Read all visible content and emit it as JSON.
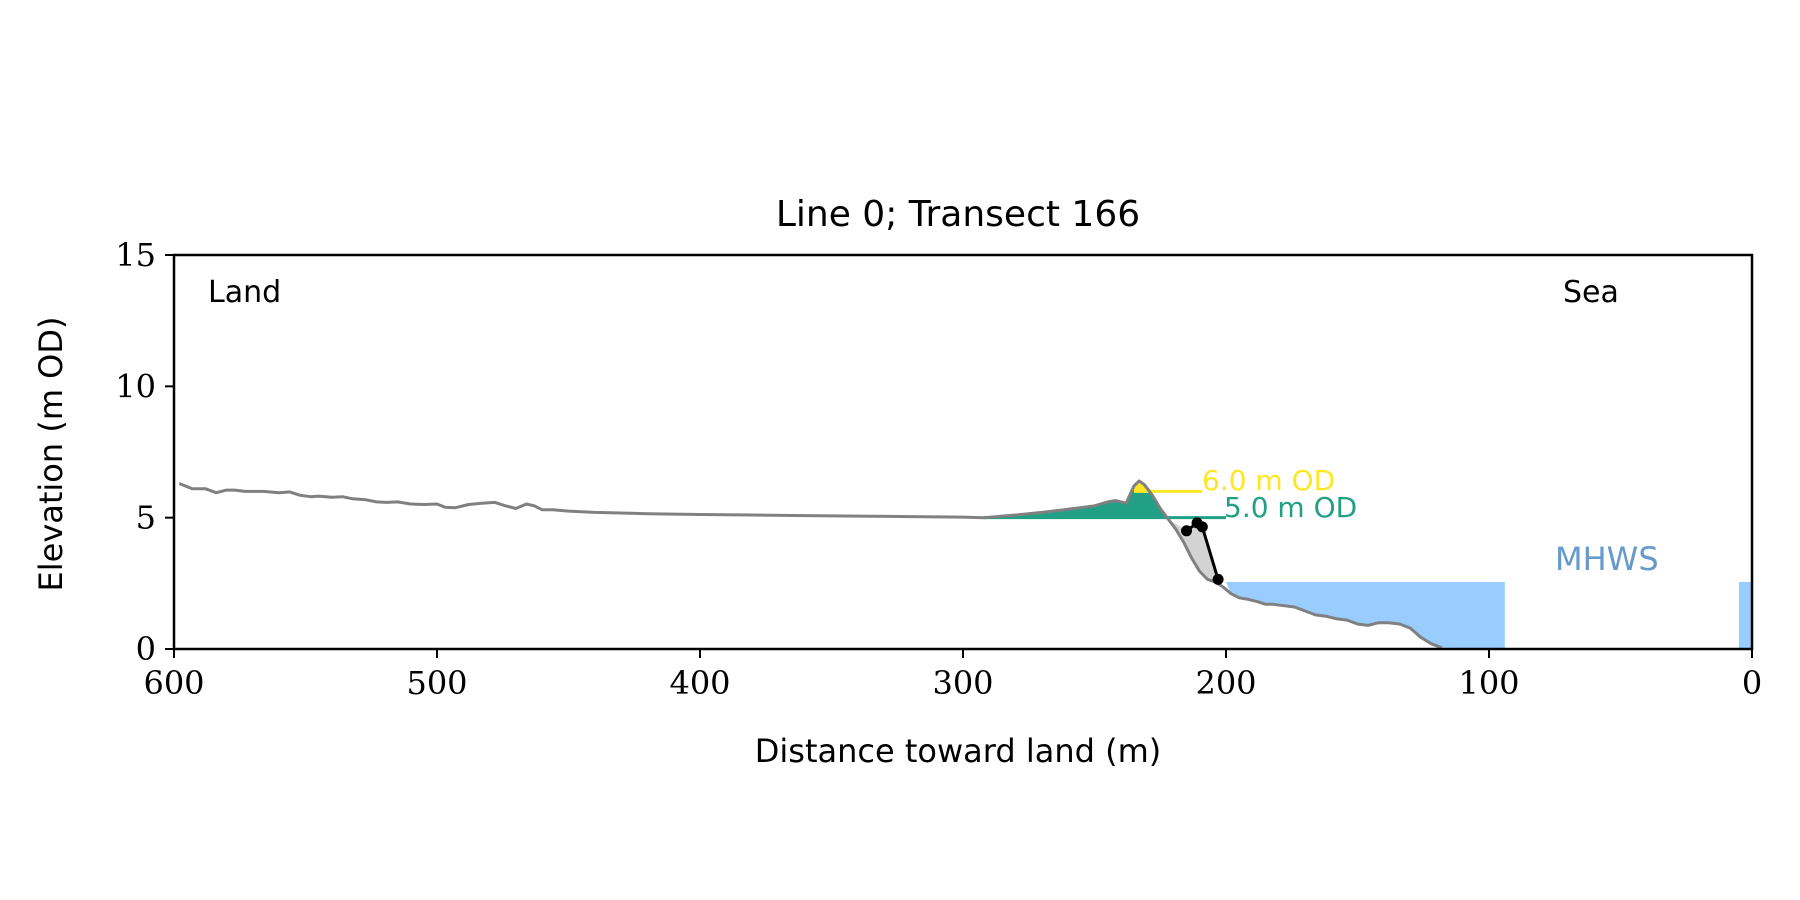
{
  "chart_data": {
    "type": "line",
    "title": "Line 0; Transect 166",
    "xlabel": "Distance toward land (m)",
    "ylabel": "Elevation (m OD)",
    "xlim": [
      600,
      0
    ],
    "ylim": [
      0,
      15
    ],
    "x_ticks": [
      600,
      500,
      400,
      300,
      200,
      100,
      0
    ],
    "y_ticks": [
      0,
      5,
      10,
      15
    ],
    "grid": false,
    "corner_labels": {
      "left": "Land",
      "right": "Sea"
    },
    "profile": {
      "color": "#808080",
      "x": [
        598,
        593,
        588,
        584,
        580,
        577,
        573,
        566,
        560,
        556,
        552,
        548,
        545,
        540,
        536,
        532,
        527,
        523,
        519,
        515,
        510,
        505,
        500,
        497,
        493,
        488,
        483,
        478,
        474,
        470,
        466,
        463,
        460,
        456,
        450,
        440,
        420,
        400,
        380,
        360,
        340,
        320,
        300,
        292,
        280,
        270,
        260,
        250,
        245,
        242,
        238,
        235,
        233,
        231,
        228,
        225,
        222,
        219,
        216,
        213,
        210,
        207,
        204,
        201,
        198,
        195,
        192,
        188,
        185,
        182,
        178,
        174,
        170,
        166,
        162,
        158,
        154,
        150,
        146,
        142,
        138,
        134,
        130,
        126,
        122,
        118
      ],
      "y": [
        6.3,
        6.1,
        6.1,
        5.95,
        6.05,
        6.05,
        6.0,
        6.0,
        5.95,
        5.98,
        5.85,
        5.8,
        5.82,
        5.78,
        5.8,
        5.72,
        5.68,
        5.6,
        5.58,
        5.6,
        5.52,
        5.5,
        5.52,
        5.4,
        5.38,
        5.5,
        5.55,
        5.58,
        5.45,
        5.35,
        5.52,
        5.45,
        5.3,
        5.3,
        5.25,
        5.2,
        5.15,
        5.12,
        5.1,
        5.08,
        5.06,
        5.04,
        5.02,
        5.0,
        5.1,
        5.2,
        5.32,
        5.45,
        5.6,
        5.65,
        5.55,
        6.2,
        6.4,
        6.25,
        5.85,
        5.35,
        4.95,
        4.55,
        4.05,
        3.45,
        2.95,
        2.65,
        2.55,
        2.35,
        2.1,
        1.95,
        1.9,
        1.8,
        1.7,
        1.7,
        1.65,
        1.6,
        1.45,
        1.3,
        1.25,
        1.15,
        1.1,
        0.95,
        0.9,
        1.0,
        1.0,
        0.95,
        0.8,
        0.45,
        0.2,
        0.05
      ]
    },
    "cliff_markers": {
      "color": "#000000",
      "points": [
        [
          215,
          4.5
        ],
        [
          211,
          4.8
        ],
        [
          209,
          4.65
        ],
        [
          203,
          2.65
        ]
      ]
    },
    "levels": [
      {
        "value": 6.0,
        "label": "6.0 m OD",
        "color": "#FDE725",
        "x_start": 235,
        "x_end": 209
      },
      {
        "value": 5.0,
        "label": "5.0 m OD",
        "color": "#21A086",
        "x_start": 292,
        "x_end": 200
      }
    ],
    "mhws": {
      "label": "MHWS",
      "value": 2.55,
      "fill_color": "#99CCFF",
      "text_color": "#6699CC",
      "bands": [
        [
          200,
          94
        ],
        [
          5,
          0
        ]
      ]
    }
  }
}
